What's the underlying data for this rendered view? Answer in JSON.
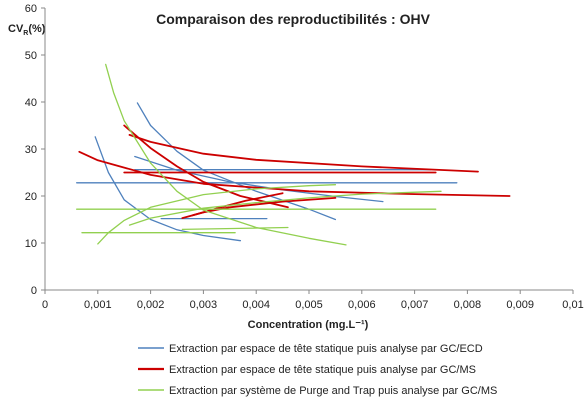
{
  "chart_data": {
    "type": "line",
    "title": "Comparaison des reproductibilités : OHV",
    "ylabel": {
      "main": "CV",
      "sub": "R",
      "suffix": "(%)"
    },
    "xlabel": "Concentration (mg.L⁻¹)",
    "xlim": [
      0,
      0.01
    ],
    "ylim": [
      0,
      60
    ],
    "xticks": [
      "0",
      "0,001",
      "0,002",
      "0,003",
      "0,004",
      "0,005",
      "0,006",
      "0,007",
      "0,008",
      "0,009",
      "0,01"
    ],
    "yticks": [
      "0",
      "10",
      "20",
      "30",
      "40",
      "50",
      "60"
    ],
    "grid": false,
    "legend_position": "bottom",
    "series": [
      {
        "name": "Extraction par espace de tête statique puis analyse par GC/ECD",
        "color": "#4f81bd",
        "lines": [
          [
            [
              0.00095,
              32.6
            ],
            [
              0.0012,
              25.0
            ],
            [
              0.0015,
              19.2
            ],
            [
              0.002,
              15.0
            ],
            [
              0.0025,
              12.8
            ],
            [
              0.003,
              11.6
            ],
            [
              0.0037,
              10.5
            ]
          ],
          [
            [
              0.00175,
              39.8
            ],
            [
              0.002,
              35.0
            ],
            [
              0.0025,
              29.5
            ],
            [
              0.003,
              25.5
            ],
            [
              0.004,
              21.0
            ],
            [
              0.005,
              17.2
            ],
            [
              0.0055,
              15.0
            ]
          ],
          [
            [
              0.0017,
              28.4
            ],
            [
              0.0025,
              25.5
            ],
            [
              0.0035,
              23.0
            ],
            [
              0.0045,
              21.3
            ],
            [
              0.0055,
              19.9
            ],
            [
              0.0064,
              18.8
            ]
          ],
          [
            [
              0.0006,
              22.8
            ],
            [
              0.0078,
              22.8
            ]
          ],
          [
            [
              0.0017,
              25.6
            ],
            [
              0.0073,
              25.6
            ]
          ],
          [
            [
              0.0022,
              15.2
            ],
            [
              0.0042,
              15.2
            ]
          ]
        ]
      },
      {
        "name": "Extraction par espace de tête statique puis analyse par GC/MS",
        "color": "#cc0000",
        "lines": [
          [
            [
              0.00065,
              29.4
            ],
            [
              0.001,
              27.6
            ],
            [
              0.002,
              24.5
            ],
            [
              0.003,
              22.6
            ],
            [
              0.005,
              21.0
            ],
            [
              0.007,
              20.4
            ],
            [
              0.0088,
              20.0
            ]
          ],
          [
            [
              0.0016,
              33.0
            ],
            [
              0.002,
              31.5
            ],
            [
              0.003,
              29.0
            ],
            [
              0.004,
              27.7
            ],
            [
              0.006,
              26.3
            ],
            [
              0.0082,
              25.2
            ]
          ],
          [
            [
              0.0015,
              35.0
            ],
            [
              0.002,
              30.2
            ],
            [
              0.0025,
              26.3
            ],
            [
              0.003,
              23.0
            ],
            [
              0.0037,
              20.0
            ],
            [
              0.0046,
              17.6
            ]
          ],
          [
            [
              0.0026,
              15.3
            ],
            [
              0.003,
              16.5
            ],
            [
              0.0035,
              17.6
            ],
            [
              0.0045,
              18.8
            ],
            [
              0.0055,
              19.6
            ]
          ],
          [
            [
              0.0028,
              15.9
            ],
            [
              0.0033,
              17.5
            ],
            [
              0.0038,
              19.0
            ],
            [
              0.0045,
              20.6
            ]
          ],
          [
            [
              0.0015,
              25.0
            ],
            [
              0.0074,
              25.0
            ]
          ]
        ]
      },
      {
        "name": "Extraction par système de Purge and Trap puis analyse par GC/MS",
        "color": "#92d050",
        "lines": [
          [
            [
              0.00115,
              48.0
            ],
            [
              0.0013,
              42.0
            ],
            [
              0.0015,
              36.0
            ],
            [
              0.002,
              27.0
            ],
            [
              0.0025,
              21.0
            ],
            [
              0.003,
              17.0
            ],
            [
              0.004,
              13.3
            ],
            [
              0.005,
              11.0
            ],
            [
              0.0057,
              9.6
            ]
          ],
          [
            [
              0.001,
              9.8
            ],
            [
              0.0012,
              12.2
            ],
            [
              0.0015,
              14.8
            ],
            [
              0.002,
              17.6
            ],
            [
              0.003,
              20.3
            ],
            [
              0.004,
              21.5
            ],
            [
              0.005,
              22.2
            ],
            [
              0.0055,
              22.4
            ]
          ],
          [
            [
              0.0016,
              13.8
            ],
            [
              0.002,
              15.3
            ],
            [
              0.003,
              17.4
            ],
            [
              0.004,
              18.6
            ],
            [
              0.005,
              19.6
            ],
            [
              0.006,
              20.4
            ],
            [
              0.0075,
              21.0
            ]
          ],
          [
            [
              0.0006,
              17.2
            ],
            [
              0.0074,
              17.2
            ]
          ],
          [
            [
              0.0007,
              12.2
            ],
            [
              0.0036,
              12.2
            ]
          ],
          [
            [
              0.0026,
              12.9
            ],
            [
              0.0046,
              13.3
            ]
          ]
        ]
      }
    ]
  }
}
